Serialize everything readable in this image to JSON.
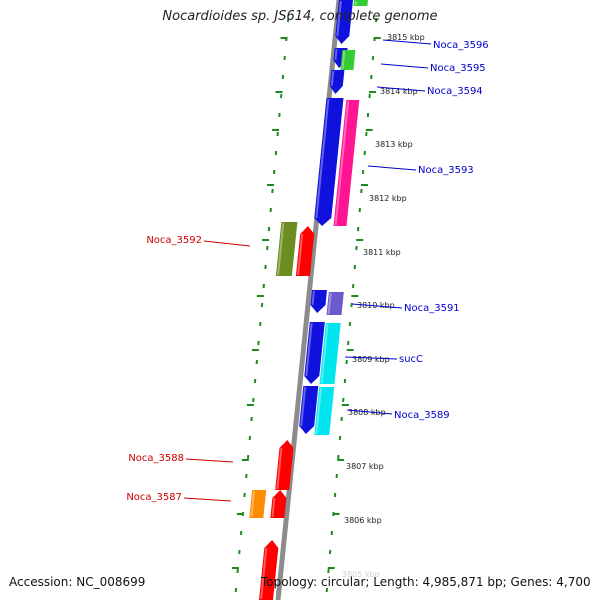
{
  "title": "Nocardioides sp. JS614, complete genome",
  "footer": {
    "accession": "Accession: NC_008699",
    "summary": "Topology: circular; Length: 4,985,871 bp; Genes: 4,700"
  },
  "colors": {
    "backbone": "#8c8c8c",
    "dotted_guides": "#1f8a1f",
    "label_forward": "#0000cc",
    "label_reverse": "#cc0000",
    "tick_text": "#222222"
  },
  "ticks": [
    {
      "label": "3815 kbp"
    },
    {
      "label": "3814 kbp"
    },
    {
      "label": "3813 kbp"
    },
    {
      "label": "3812 kbp"
    },
    {
      "label": "3811 kbp"
    },
    {
      "label": "3810 kbp"
    },
    {
      "label": "3809 kbp"
    },
    {
      "label": "3808 kbp"
    },
    {
      "label": "3807 kbp"
    },
    {
      "label": "3806 kbp"
    },
    {
      "label": "3805 kbp"
    }
  ],
  "genes": [
    {
      "name": "Noca_3596",
      "strand": "+",
      "color": "#1111dd"
    },
    {
      "name": "Noca_3595",
      "strand": "+",
      "color": "#33cc33"
    },
    {
      "name": "Noca_3594",
      "strand": "+",
      "color": "#1111dd"
    },
    {
      "name": "Noca_3593",
      "strand": "+",
      "color": "#ff1493"
    },
    {
      "name": "Noca_3592",
      "strand": "-",
      "color": "#6b8e23"
    },
    {
      "name": "Noca_3591",
      "strand": "+",
      "color": "#6a5acd"
    },
    {
      "name": "sucC",
      "strand": "+",
      "color": "#00e5ee"
    },
    {
      "name": "Noca_3589",
      "strand": "+",
      "color": "#00e5ee"
    },
    {
      "name": "Noca_3588",
      "strand": "-",
      "color": "#ff0000"
    },
    {
      "name": "Noca_3587",
      "strand": "-",
      "color": "#ff8c00"
    }
  ]
}
